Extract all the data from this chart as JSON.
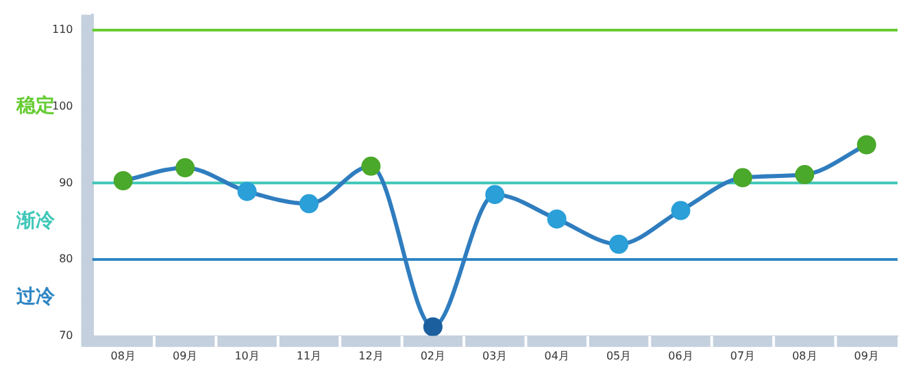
{
  "chart_data": {
    "type": "line",
    "categories": [
      "08月",
      "09月",
      "10月",
      "11月",
      "12月",
      "02月",
      "03月",
      "04月",
      "05月",
      "06月",
      "07月",
      "08月",
      "09月"
    ],
    "series": [
      {
        "color": "#2f7dbf",
        "colors": [
          "#4aa82a",
          "#4aa82a",
          "#2a9fd8",
          "#2a9fd8",
          "#4aa82a",
          "#1c5f9e",
          "#2a9fd8",
          "#2a9fd8",
          "#2a9fd8",
          "#2a9fd8",
          "#4aa82a",
          "#4aa82a",
          "#4aa82a"
        ],
        "values": [
          90.3,
          92.0,
          88.9,
          87.3,
          92.2,
          71.2,
          88.5,
          85.3,
          82.0,
          86.4,
          90.7,
          91.1,
          95.0
        ]
      }
    ],
    "ylim": [
      70,
      112
    ],
    "yticks": [
      70,
      {
        "value": 75,
        "label": null
      },
      80,
      {
        "value": 85,
        "label": null
      },
      90,
      {
        "value": 95,
        "label": null
      },
      100,
      {
        "value": 105,
        "label": null
      },
      110
    ],
    "ref_lines": [
      {
        "axis": "y",
        "value": 110,
        "color": "#66cc33"
      },
      {
        "axis": "y",
        "value": 90,
        "color": "#3fc7b8"
      },
      {
        "axis": "y",
        "value": 80,
        "color": "#2f86c4"
      }
    ],
    "annotations": [
      "稳定",
      "渐冷",
      "过冷"
    ],
    "marker": "circle",
    "grid": false,
    "legend": false
  }
}
